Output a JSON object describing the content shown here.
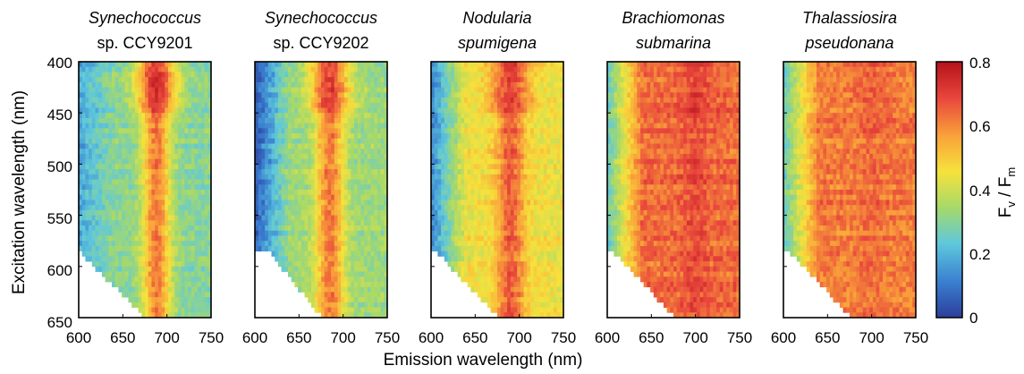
{
  "chart_data": {
    "type": "heatmap",
    "xlabel": "Emission wavelength (nm)",
    "ylabel": "Excitation wavelength (nm)",
    "x_ticks": [
      "600",
      "650",
      "700",
      "750"
    ],
    "y_ticks": [
      "400",
      "450",
      "500",
      "550",
      "600",
      "650"
    ],
    "xlim": [
      600,
      750
    ],
    "ylim": [
      650,
      400
    ],
    "colorbar": {
      "label_main": "F",
      "label_sub1": "v",
      "label_sep": " / F",
      "label_sub2": "m",
      "ticks": [
        "0",
        "0.2",
        "0.4",
        "0.6",
        "0.8"
      ],
      "range": [
        0,
        0.8
      ],
      "colors": [
        "#2c3e9a",
        "#3a7fd0",
        "#5ec8dc",
        "#a6d96a",
        "#f6e23c",
        "#f9a23a",
        "#e8453c",
        "#b5121b"
      ]
    },
    "panels": [
      {
        "title_line1": "Synechococcus",
        "title_line2": "sp. CCY9201",
        "line1_italic": true,
        "line2_italic": false,
        "peak_emission": 688,
        "peak_value": 0.62,
        "background_value": 0.3,
        "short_wavelength_value": 0.18,
        "blue_band_excitation": [
          400,
          450
        ],
        "blue_band_peak": 0.72,
        "edge_emission_at_600nm": 600,
        "edge_emission_at_650nm": 675
      },
      {
        "title_line1": "Synechococcus",
        "title_line2": "sp. CCY9202",
        "line1_italic": true,
        "line2_italic": false,
        "peak_emission": 685,
        "peak_value": 0.62,
        "background_value": 0.33,
        "short_wavelength_value": 0.05,
        "blue_band_excitation": [
          400,
          450
        ],
        "blue_band_peak": 0.7,
        "edge_emission_at_600nm": 615,
        "edge_emission_at_650nm": 676
      },
      {
        "title_line1": "Nodularia",
        "title_line2": "spumigena",
        "line1_italic": true,
        "line2_italic": true,
        "peak_emission": 690,
        "peak_value": 0.66,
        "background_value": 0.45,
        "short_wavelength_value": 0.12,
        "blue_band_excitation": [
          400,
          450
        ],
        "blue_band_peak": 0.7,
        "edge_emission_at_600nm": 605,
        "edge_emission_at_650nm": 676
      },
      {
        "title_line1": "Brachiomonas",
        "title_line2": "submarina",
        "line1_italic": true,
        "line2_italic": true,
        "peak_emission": 700,
        "peak_value": 0.68,
        "background_value": 0.64,
        "short_wavelength_value": 0.25,
        "blue_band_excitation": [
          400,
          450
        ],
        "blue_band_peak": 0.7,
        "edge_emission_at_600nm": 606,
        "edge_emission_at_650nm": 677
      },
      {
        "title_line1": "Thalassiosira",
        "title_line2": "pseudonana",
        "line1_italic": true,
        "line2_italic": true,
        "peak_emission": 700,
        "peak_value": 0.64,
        "background_value": 0.62,
        "short_wavelength_value": 0.25,
        "blue_band_excitation": [
          400,
          450
        ],
        "blue_band_peak": 0.66,
        "edge_emission_at_600nm": 606,
        "edge_emission_at_650nm": 677
      }
    ]
  }
}
